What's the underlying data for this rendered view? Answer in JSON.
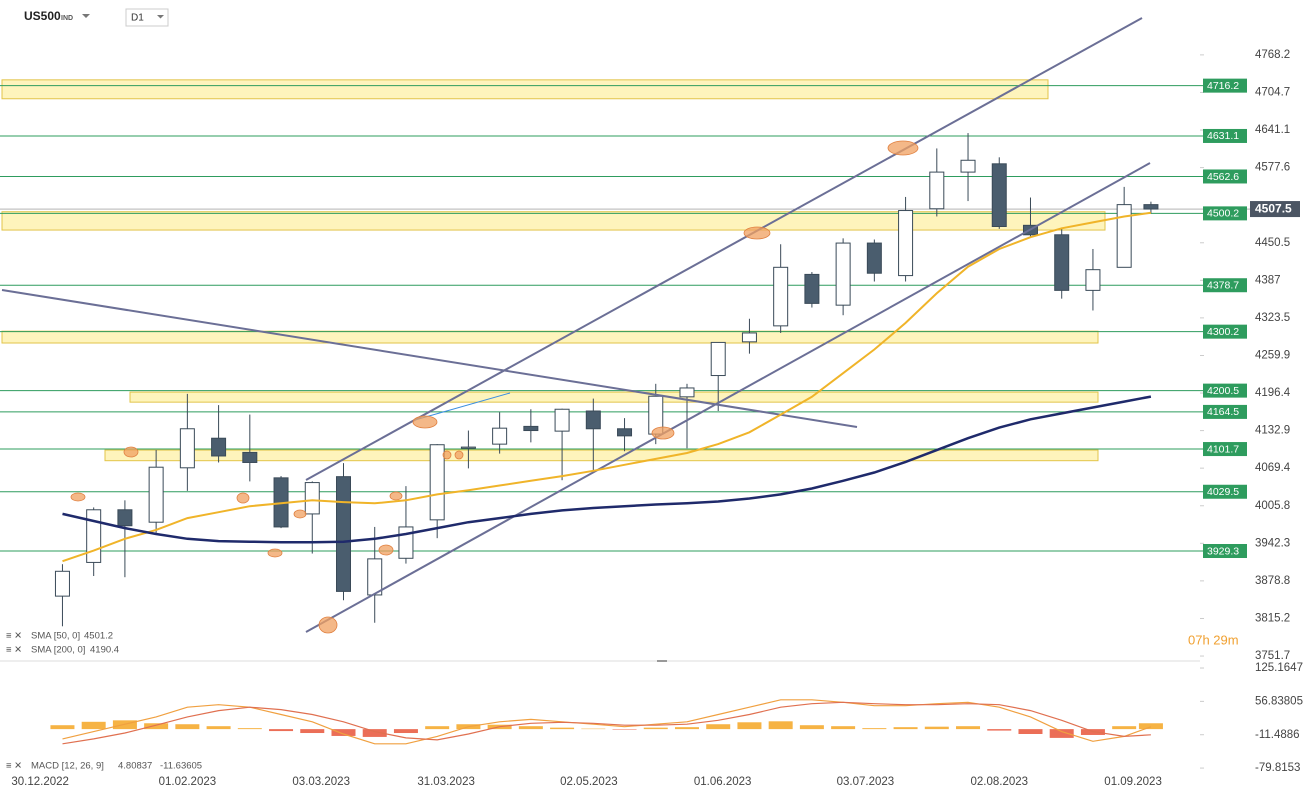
{
  "header": {
    "symbol": "US500",
    "market": "IND",
    "interval": "D1"
  },
  "chart_data": [
    {
      "type": "candlestick",
      "x": [
        "04.01.2023",
        "11.01.2023",
        "18.01.2023",
        "25.01.2023",
        "01.02.2023",
        "08.02.2023",
        "15.02.2023",
        "22.02.2023",
        "01.03.2023",
        "08.03.2023",
        "15.03.2023",
        "22.03.2023",
        "29.03.2023",
        "05.04.2023",
        "12.04.2023",
        "19.04.2023",
        "26.04.2023",
        "03.05.2023",
        "10.05.2023",
        "17.05.2023",
        "24.05.2023",
        "31.05.2023",
        "07.06.2023",
        "14.06.2023",
        "21.06.2023",
        "28.06.2023",
        "05.07.2023",
        "12.07.2023",
        "19.07.2023",
        "26.07.2023",
        "02.08.2023",
        "09.08.2023",
        "16.08.2023",
        "23.08.2023",
        "30.08.2023",
        "05.09.2023"
      ],
      "open": [
        3853,
        3910,
        3999,
        3978,
        4070,
        4120,
        4096,
        4053,
        3992,
        4055,
        3855,
        3917,
        3982,
        4103,
        4110,
        4140,
        4132,
        4166,
        4136,
        4127,
        4190,
        4226,
        4283,
        4310,
        4397,
        4345,
        4450,
        4395,
        4508,
        4570,
        4584,
        4480,
        4464,
        4370,
        4409,
        4515
      ],
      "high": [
        3907,
        4003,
        4015,
        4100,
        4195,
        4176,
        4160,
        4056,
        4047,
        4078,
        3970,
        4039,
        4110,
        4133,
        4164,
        4169,
        4170,
        4187,
        4154,
        4212,
        4212,
        4281,
        4322,
        4448,
        4401,
        4458,
        4456,
        4528,
        4610,
        4636,
        4595,
        4527,
        4476,
        4440,
        4545,
        4520
      ],
      "low": [
        3802,
        3887,
        3885,
        3960,
        4031,
        4079,
        4047,
        3968,
        3925,
        3846,
        3808,
        3908,
        3951,
        4069,
        4094,
        4113,
        4049,
        4062,
        4098,
        4110,
        4103,
        4166,
        4263,
        4298,
        4341,
        4328,
        4385,
        4385,
        4495,
        4521,
        4474,
        4459,
        4356,
        4336,
        4409,
        4500
      ],
      "close": [
        3895,
        3999,
        3972,
        4071,
        4136,
        4090,
        4079,
        3970,
        4045,
        3861,
        3916,
        3970,
        4109,
        4105,
        4137,
        4133,
        4169,
        4136,
        4124,
        4191,
        4205,
        4282,
        4298,
        4409,
        4348,
        4450,
        4399,
        4505,
        4570,
        4590,
        4478,
        4464,
        4370,
        4405,
        4515,
        4507.5
      ],
      "up_color": "#ffffff",
      "down_color": "#4a5d6e",
      "outline_color": "#3a4a58",
      "series": [
        {
          "name": "SMA [50, 0]",
          "last": 4501.2,
          "color": "#f0b429",
          "values": [
            3912,
            3930,
            3950,
            3965,
            3985,
            3995,
            4005,
            4010,
            4015,
            4012,
            4010,
            4015,
            4025,
            4032,
            4040,
            4048,
            4056,
            4065,
            4075,
            4085,
            4095,
            4110,
            4130,
            4160,
            4190,
            4230,
            4270,
            4315,
            4365,
            4410,
            4440,
            4460,
            4475,
            4485,
            4495,
            4501.2
          ]
        },
        {
          "name": "SMA [200, 0]",
          "last": 4190.4,
          "color": "#1f2a6b",
          "values": [
            3992,
            3980,
            3968,
            3958,
            3950,
            3946,
            3945,
            3944,
            3944,
            3945,
            3950,
            3958,
            3968,
            3978,
            3985,
            3992,
            3998,
            4002,
            4005,
            4008,
            4010,
            4013,
            4018,
            4025,
            4035,
            4048,
            4062,
            4080,
            4100,
            4120,
            4138,
            4152,
            4162,
            4172,
            4182,
            4190.4
          ]
        }
      ],
      "current_price": 4507.5,
      "levels": [
        4716.2,
        4631.1,
        4562.6,
        4500.2,
        4378.7,
        4300.2,
        4200.5,
        4164.5,
        4101.7,
        4029.5,
        3929.3
      ],
      "level_color": "#2e9c5e",
      "zones": [
        {
          "low": 4694,
          "high": 4726
        },
        {
          "low": 4472,
          "high": 4503
        },
        {
          "low": 4281,
          "high": 4301
        },
        {
          "low": 4181,
          "high": 4198
        },
        {
          "low": 4082,
          "high": 4100
        }
      ],
      "timer": "07h 29m",
      "xlim": [
        "21.12.2022",
        "16.09.2023"
      ],
      "xticks": [
        "30.12.2022",
        "01.02.2023",
        "03.03.2023",
        "31.03.2023",
        "02.05.2023",
        "01.06.2023",
        "03.07.2023",
        "02.08.2023",
        "01.09.2023"
      ],
      "ylim": [
        3745,
        4861
      ],
      "yticks": [
        4768.2,
        4704.7,
        4641.1,
        4577.6,
        4450.5,
        4387.0,
        4323.5,
        4259.9,
        4196.4,
        4132.9,
        4069.4,
        4005.8,
        3942.3,
        3878.8,
        3815.2,
        3751.7
      ]
    },
    {
      "type": "macd",
      "name": "MACD [12, 26, 9]",
      "last_values": [
        4.80837,
        -11.63605
      ],
      "histogram": [
        8,
        15,
        18,
        12,
        10,
        6,
        2,
        -4,
        -8,
        -14,
        -16,
        -8,
        6,
        10,
        9,
        6,
        3,
        1,
        -1,
        3,
        4,
        10,
        14,
        16,
        8,
        6,
        2,
        4,
        5,
        6,
        -3,
        -10,
        -18,
        -12,
        6,
        12
      ],
      "pos_color": "#f5a623",
      "neg_color": "#e8553a",
      "series": [
        {
          "name": "MACD",
          "color": "#f0a040",
          "values": [
            -20,
            -5,
            10,
            25,
            45,
            50,
            45,
            30,
            15,
            -10,
            -30,
            -30,
            -15,
            5,
            15,
            20,
            15,
            10,
            5,
            10,
            15,
            30,
            45,
            60,
            60,
            55,
            48,
            48,
            52,
            55,
            45,
            25,
            -5,
            -25,
            -15,
            4.80837
          ]
        },
        {
          "name": "Signal",
          "color": "#e07050",
          "values": [
            -30,
            -20,
            -8,
            8,
            25,
            38,
            45,
            40,
            30,
            15,
            -5,
            -18,
            -22,
            -10,
            5,
            12,
            14,
            12,
            8,
            8,
            10,
            18,
            30,
            45,
            52,
            55,
            52,
            50,
            50,
            52,
            50,
            38,
            18,
            -5,
            -15,
            -11.63605
          ]
        }
      ],
      "ylim": [
        -94,
        137.5
      ],
      "yticks": [
        125.1647,
        56.83805,
        -11.4886,
        -79.8153
      ]
    }
  ]
}
